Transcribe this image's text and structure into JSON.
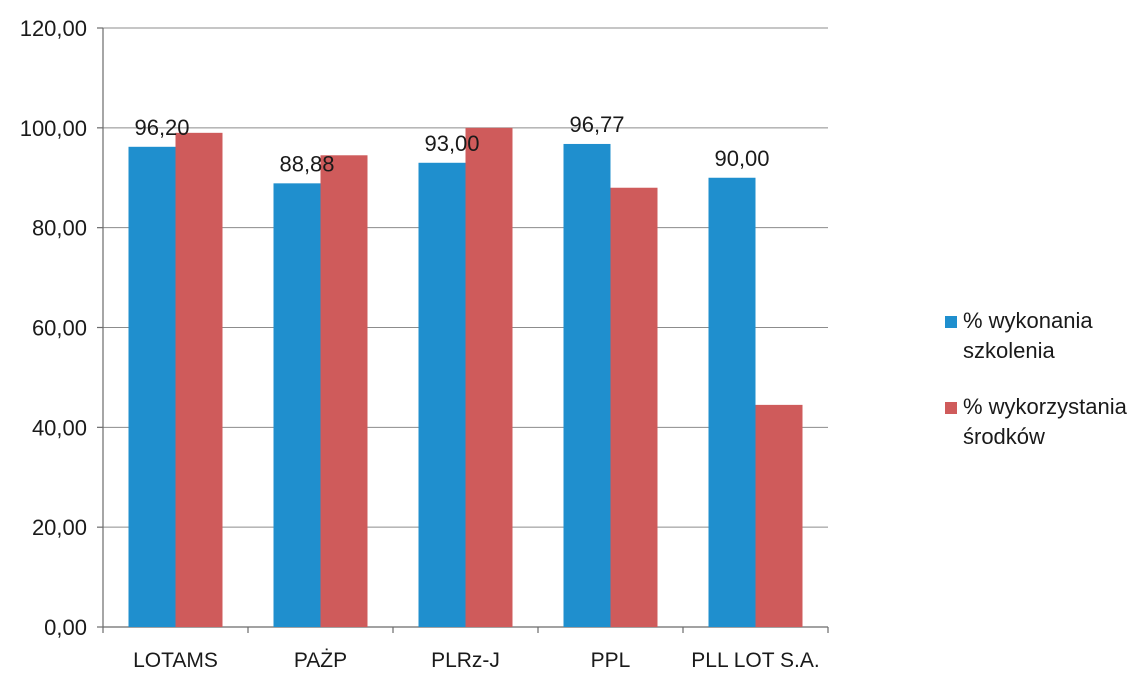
{
  "chart_data": {
    "type": "bar",
    "title": "",
    "xlabel": "",
    "ylabel": "",
    "categories": [
      "LOTAMS",
      "PAŻP",
      "PLRz-J",
      "PPL",
      "PLL LOT S.A."
    ],
    "ylim": [
      0,
      120
    ],
    "yticks": [
      0,
      20,
      40,
      60,
      80,
      100,
      120
    ],
    "ytick_labels": [
      "0,00",
      "20,00",
      "40,00",
      "60,00",
      "80,00",
      "100,00",
      "120,00"
    ],
    "grid": true,
    "legend_position": "right",
    "series": [
      {
        "name_lines": [
          "% wykonania",
          "szkolenia"
        ],
        "color": "#1f8fce",
        "values": [
          96.2,
          88.88,
          93.0,
          96.77,
          90.0
        ],
        "data_labels": [
          "96,20",
          "88,88",
          "93,00",
          "96,77",
          "90,00"
        ]
      },
      {
        "name_lines": [
          "% wykorzystania",
          "środków"
        ],
        "color": "#cf5b5b",
        "values": [
          99,
          94.5,
          100,
          88,
          44.5
        ]
      }
    ]
  }
}
